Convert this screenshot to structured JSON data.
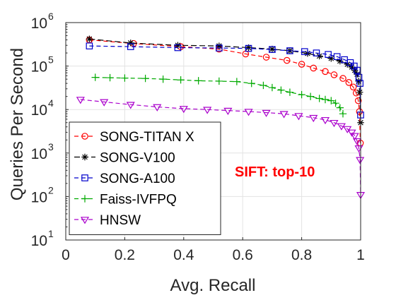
{
  "chart_data": {
    "type": "line",
    "xlabel": "Avg. Recall",
    "ylabel": "Queries Per Second",
    "xlim": [
      0,
      1
    ],
    "ylim": [
      10,
      1000000
    ],
    "yscale": "log",
    "grid": true,
    "legend_position": "lower-left",
    "annotation": {
      "text": "SIFT: top-10",
      "color": "#ff0000"
    },
    "x_ticks": [
      {
        "value": 0,
        "label": "0"
      },
      {
        "value": 0.2,
        "label": "0.2"
      },
      {
        "value": 0.4,
        "label": "0.4"
      },
      {
        "value": 0.6,
        "label": "0.6"
      },
      {
        "value": 0.8,
        "label": "0.8"
      },
      {
        "value": 1,
        "label": "1"
      }
    ],
    "y_ticks": [
      {
        "value": 10,
        "base": "10",
        "exp": "1"
      },
      {
        "value": 100,
        "base": "10",
        "exp": "2"
      },
      {
        "value": 1000,
        "base": "10",
        "exp": "3"
      },
      {
        "value": 10000,
        "base": "10",
        "exp": "4"
      },
      {
        "value": 100000,
        "base": "10",
        "exp": "5"
      },
      {
        "value": 1000000,
        "base": "10",
        "exp": "6"
      }
    ],
    "series": [
      {
        "name": "SONG-TITAN X",
        "color": "#ff0000",
        "dash": "6,4",
        "marker": "circle",
        "x": [
          0.08,
          0.23,
          0.39,
          0.52,
          0.61,
          0.68,
          0.75,
          0.8,
          0.84,
          0.88,
          0.91,
          0.94,
          0.96,
          0.975,
          0.985,
          0.992,
          0.996,
          0.999
        ],
        "y": [
          400000,
          330000,
          280000,
          245000,
          190000,
          160000,
          135000,
          110000,
          90000,
          75000,
          63000,
          52000,
          42000,
          33000,
          24000,
          16000,
          9000,
          1700
        ]
      },
      {
        "name": "SONG-V100",
        "color": "#000000",
        "dash": "8,4",
        "marker": "star",
        "x": [
          0.08,
          0.22,
          0.38,
          0.52,
          0.62,
          0.7,
          0.76,
          0.82,
          0.86,
          0.9,
          0.93,
          0.955,
          0.97,
          0.98,
          0.988,
          0.993,
          0.997,
          1.0
        ],
        "y": [
          420000,
          340000,
          300000,
          290000,
          265000,
          245000,
          225000,
          195000,
          170000,
          150000,
          130000,
          110000,
          95000,
          80000,
          65000,
          45000,
          25000,
          5000
        ]
      },
      {
        "name": "SONG-A100",
        "color": "#0000cc",
        "dash": "6,4",
        "marker": "square",
        "x": [
          0.08,
          0.22,
          0.38,
          0.52,
          0.62,
          0.7,
          0.76,
          0.81,
          0.85,
          0.89,
          0.92,
          0.945,
          0.965,
          0.978,
          0.988,
          0.994,
          0.998,
          1.0
        ],
        "y": [
          290000,
          280000,
          265000,
          260000,
          255000,
          240000,
          225000,
          215000,
          200000,
          185000,
          165000,
          140000,
          120000,
          100000,
          80000,
          55000,
          40000,
          7500
        ]
      },
      {
        "name": "Faiss-IVFPQ",
        "color": "#00aa00",
        "dash": "6,4",
        "marker": "plus",
        "x": [
          0.1,
          0.15,
          0.2,
          0.27,
          0.33,
          0.39,
          0.45,
          0.52,
          0.58,
          0.63,
          0.67,
          0.7,
          0.73,
          0.76,
          0.8,
          0.83,
          0.86,
          0.88,
          0.9,
          0.915,
          0.93,
          0.94
        ],
        "y": [
          55000,
          54000,
          53000,
          52000,
          50000,
          48000,
          46000,
          45000,
          44000,
          40000,
          36000,
          32000,
          28000,
          25000,
          22000,
          20000,
          18000,
          17000,
          16000,
          14000,
          11000,
          8000
        ]
      },
      {
        "name": "HNSW",
        "color": "#aa00cc",
        "dash": "6,4",
        "marker": "triangle-down",
        "x": [
          0.05,
          0.13,
          0.22,
          0.31,
          0.4,
          0.48,
          0.55,
          0.62,
          0.68,
          0.74,
          0.79,
          0.84,
          0.88,
          0.91,
          0.935,
          0.955,
          0.97,
          0.98,
          0.988,
          0.994,
          0.998,
          1.0
        ],
        "y": [
          17000,
          15000,
          13000,
          11500,
          10500,
          10000,
          9500,
          9000,
          8500,
          8000,
          7200,
          6500,
          5800,
          5000,
          4200,
          3600,
          3000,
          2500,
          1900,
          1300,
          700,
          110
        ]
      }
    ]
  }
}
